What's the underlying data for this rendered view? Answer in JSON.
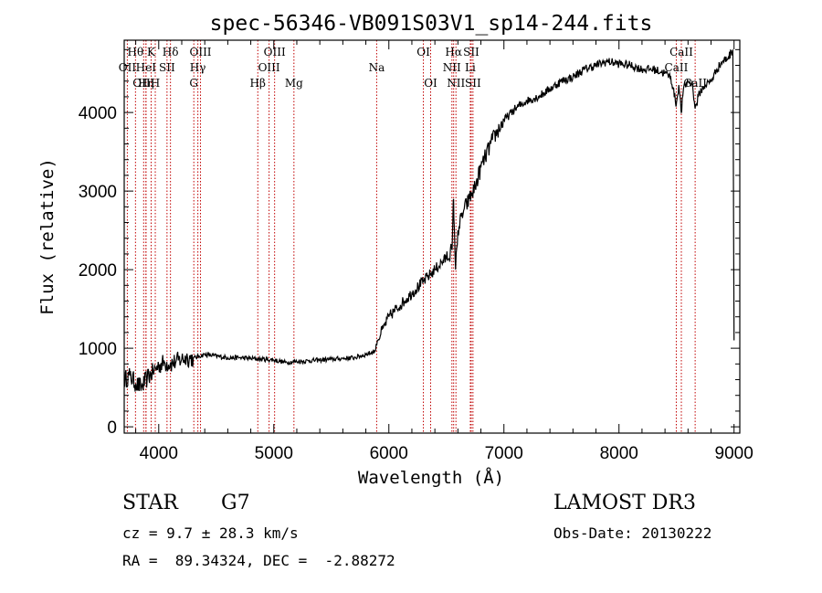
{
  "chart_data": {
    "type": "line",
    "title": "spec-56346-VB091S03V1_sp14-244.fits",
    "xlabel": "Wavelength (Å)",
    "ylabel": "Flux (relative)",
    "xlim": [
      3700,
      9050
    ],
    "ylim": [
      -80,
      4920
    ],
    "xticks": [
      4000,
      5000,
      6000,
      7000,
      8000,
      9000
    ],
    "yticks": [
      0,
      1000,
      2000,
      3000,
      4000
    ],
    "xtick_labels": [
      "4000",
      "5000",
      "6000",
      "7000",
      "8000",
      "9000"
    ],
    "ytick_labels": [
      "0",
      "1000",
      "2000",
      "3000",
      "4000"
    ],
    "series": [
      {
        "name": "flux",
        "x": [
          3700,
          3750,
          3800,
          3850,
          3900,
          3950,
          4000,
          4050,
          4100,
          4150,
          4200,
          4250,
          4300,
          4350,
          4400,
          4500,
          4600,
          4700,
          4800,
          4900,
          5000,
          5100,
          5200,
          5300,
          5400,
          5500,
          5600,
          5700,
          5800,
          5880,
          5900,
          5950,
          6000,
          6100,
          6200,
          6300,
          6400,
          6500,
          6550,
          6562,
          6580,
          6600,
          6650,
          6700,
          6750,
          6800,
          6900,
          7000,
          7100,
          7200,
          7300,
          7400,
          7500,
          7600,
          7700,
          7800,
          7900,
          8000,
          8100,
          8200,
          8300,
          8400,
          8450,
          8498,
          8520,
          8542,
          8560,
          8600,
          8640,
          8662,
          8700,
          8750,
          8800,
          8850,
          8900,
          8950,
          8990,
          9000
        ],
        "y": [
          600,
          650,
          550,
          500,
          620,
          700,
          780,
          820,
          800,
          830,
          860,
          880,
          870,
          900,
          920,
          900,
          880,
          880,
          870,
          860,
          850,
          820,
          830,
          840,
          850,
          860,
          870,
          880,
          920,
          960,
          1100,
          1250,
          1400,
          1550,
          1700,
          1850,
          2000,
          2150,
          2250,
          2900,
          2000,
          2500,
          2750,
          2900,
          3050,
          3300,
          3650,
          3900,
          4050,
          4150,
          4200,
          4300,
          4400,
          4450,
          4550,
          4600,
          4650,
          4620,
          4600,
          4550,
          4550,
          4500,
          4450,
          4100,
          4350,
          4000,
          4300,
          4400,
          4350,
          4050,
          4250,
          4350,
          4400,
          4550,
          4650,
          4700,
          4800,
          1100
        ]
      }
    ],
    "lines": [
      {
        "label": "Hθ",
        "x": 3798,
        "row": 0
      },
      {
        "label": "OII",
        "x": 3727,
        "row": 1
      },
      {
        "label": "OIII",
        "x": 3869,
        "row": 2
      },
      {
        "label": "HeI",
        "x": 3889,
        "row": 1
      },
      {
        "label": "Hη",
        "x": 3889,
        "row": 2
      },
      {
        "label": "K",
        "x": 3934,
        "row": 0
      },
      {
        "label": "SII",
        "x": 4072,
        "row": 1
      },
      {
        "label": "H",
        "x": 3970,
        "row": 2
      },
      {
        "label": "Hδ",
        "x": 4102,
        "row": 0
      },
      {
        "label": "OIII",
        "x": 4363,
        "row": 0
      },
      {
        "label": "Hγ",
        "x": 4340,
        "row": 1
      },
      {
        "label": "G",
        "x": 4305,
        "row": 2
      },
      {
        "label": "Hβ",
        "x": 4861,
        "row": 2
      },
      {
        "label": "OIII",
        "x": 5007,
        "row": 0
      },
      {
        "label": "OIII",
        "x": 4959,
        "row": 1
      },
      {
        "label": "Mg",
        "x": 5175,
        "row": 2
      },
      {
        "label": "Na",
        "x": 5894,
        "row": 1
      },
      {
        "label": "OI",
        "x": 6300,
        "row": 0
      },
      {
        "label": "OI",
        "x": 6363,
        "row": 2
      },
      {
        "label": "Hα",
        "x": 6563,
        "row": 0
      },
      {
        "label": "NII",
        "x": 6548,
        "row": 1
      },
      {
        "label": "NII",
        "x": 6583,
        "row": 2
      },
      {
        "label": "SII",
        "x": 6716,
        "row": 0
      },
      {
        "label": "Li",
        "x": 6708,
        "row": 1
      },
      {
        "label": "SII",
        "x": 6731,
        "row": 2
      },
      {
        "label": "CaII",
        "x": 8542,
        "row": 0
      },
      {
        "label": "CaII",
        "x": 8498,
        "row": 1
      },
      {
        "label": "CaII",
        "x": 8662,
        "row": 2
      }
    ]
  },
  "info": {
    "object_class": "STAR",
    "subclass": "G7",
    "survey": "LAMOST DR3",
    "cz": "cz = 9.7 ± 28.3 km/s",
    "obs_date": "Obs-Date: 20130222",
    "radec": "RA =  89.34324, DEC =  -2.88272"
  }
}
